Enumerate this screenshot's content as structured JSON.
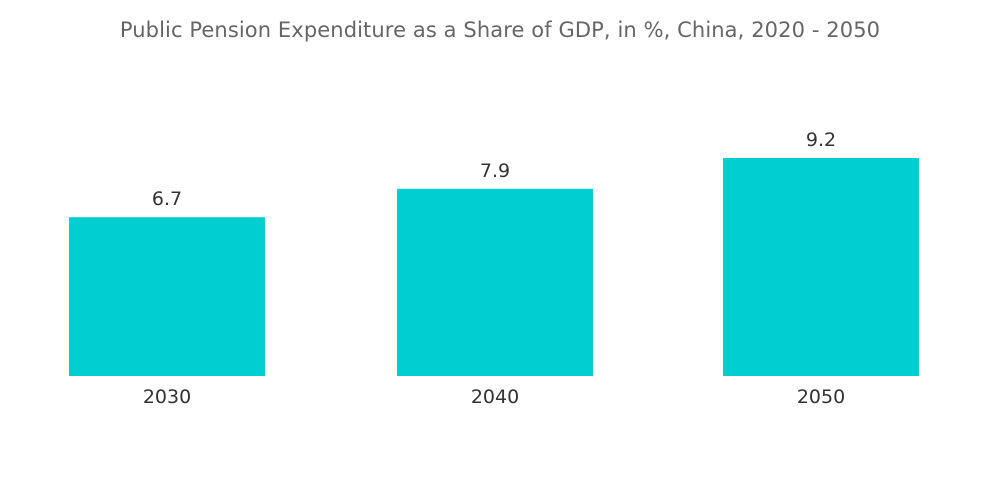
{
  "chart_data": {
    "type": "bar",
    "title": "Public Pension Expenditure as a Share of GDP, in %, China, 2020 - 2050",
    "categories": [
      "2030",
      "2040",
      "2050"
    ],
    "series": [
      {
        "values": [
          6.7,
          7.9,
          9.2
        ]
      }
    ],
    "value_labels": [
      "6.7",
      "7.9",
      "9.2"
    ],
    "xlabel": "",
    "ylabel": "",
    "ylim": [
      0,
      10
    ],
    "grid": false,
    "legend": "none",
    "colors": {
      "bar": "#00CED1"
    }
  }
}
